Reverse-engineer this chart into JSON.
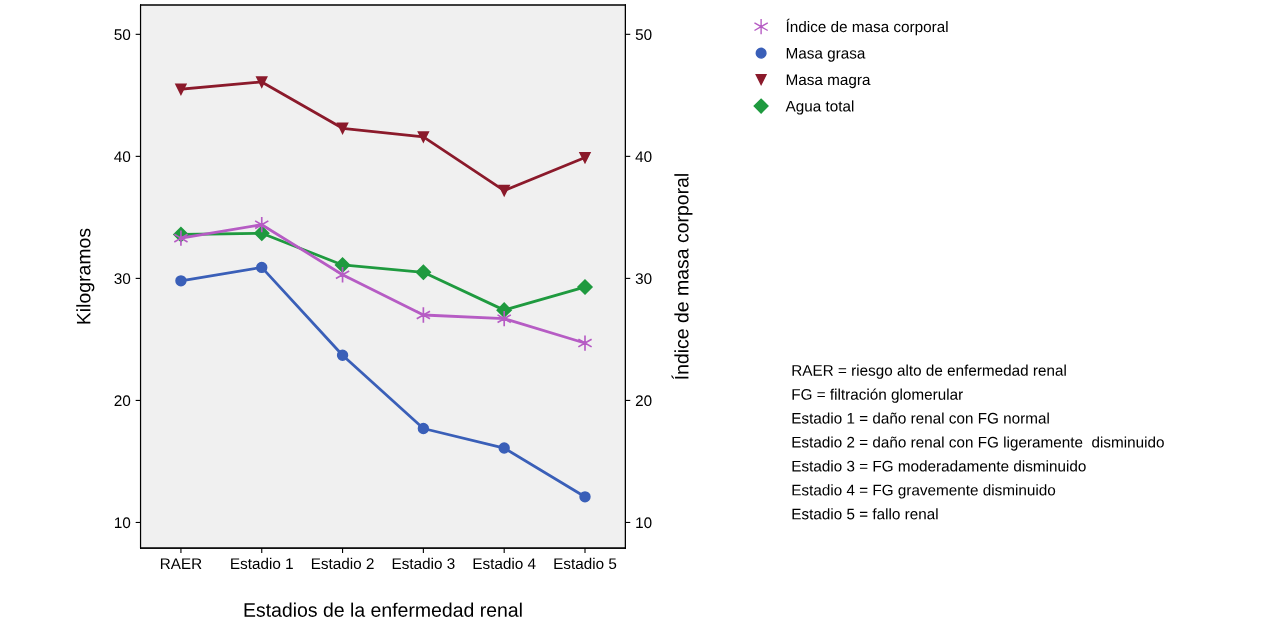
{
  "chart_data": {
    "type": "line",
    "xlabel": "Estadios de la enfermedad renal",
    "ylabel": "Kilogramos",
    "y2label": "Índice de masa corporal",
    "categories": [
      "RAER",
      "Estadio 1",
      "Estadio 2",
      "Estadio 3",
      "Estadio 4",
      "Estadio 5"
    ],
    "series": [
      {
        "name": "Índice de masa corporal",
        "color": "#b65cc4",
        "marker": "cross",
        "axis": "y2",
        "values": [
          33.3,
          34.4,
          30.3,
          27.0,
          26.7,
          24.7
        ]
      },
      {
        "name": "Masa grasa",
        "color": "#3a5fb8",
        "marker": "circle",
        "values": [
          29.8,
          30.9,
          23.7,
          17.7,
          16.1,
          12.1
        ]
      },
      {
        "name": "Masa magra",
        "color": "#8b1a2b",
        "marker": "triangle",
        "values": [
          45.5,
          46.1,
          42.3,
          41.6,
          37.2,
          39.9
        ]
      },
      {
        "name": "Agua total",
        "color": "#1f9a3f",
        "marker": "diamond",
        "values": [
          33.6,
          33.7,
          31.1,
          30.5,
          27.4,
          29.3
        ]
      }
    ],
    "ylim": [
      7.9,
      52.4
    ],
    "yticks": [
      10,
      20,
      30,
      40,
      50
    ],
    "y2lim": [
      7.9,
      52.4
    ],
    "y2ticks": [
      10,
      20,
      30,
      40,
      50
    ],
    "grid": false,
    "legend": "top right",
    "line_style": "solid",
    "annotations": [
      "RAER = riesgo alto de enfermedad renal",
      "FG = filtración glomerular",
      "Estadio 1 = daño renal con FG normal",
      "Estadio 2 = daño renal con FG ligeramente  disminuido",
      "Estadio 3 = FG moderadamente disminuido",
      "Estadio 4 = FG gravemente disminuido",
      "Estadio 5 = fallo renal"
    ]
  }
}
